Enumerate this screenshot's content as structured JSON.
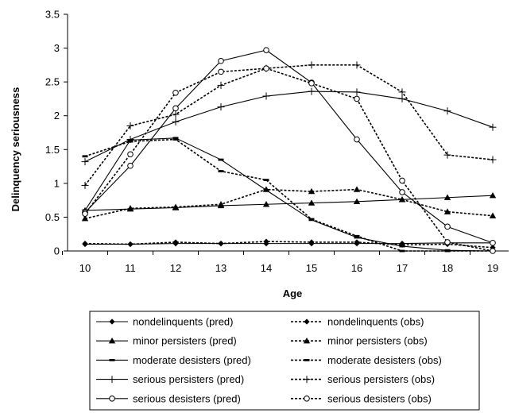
{
  "chart_data": {
    "type": "line",
    "title": "",
    "xlabel": "Age",
    "ylabel": "Delinquency seriousness",
    "x": [
      10,
      11,
      12,
      13,
      14,
      15,
      16,
      17,
      18,
      19
    ],
    "xlim": [
      10,
      19
    ],
    "ylim": [
      0,
      3.5
    ],
    "yticks": [
      "0",
      "0.5",
      "1",
      "1.5",
      "2",
      "2.5",
      "3",
      "3.5"
    ],
    "grid": false,
    "legend_position": "bottom",
    "series": [
      {
        "name": "nondelinquents (pred)",
        "style": "solid",
        "marker": "diamond",
        "values": [
          0.1,
          0.1,
          0.11,
          0.11,
          0.11,
          0.11,
          0.11,
          0.11,
          0.12,
          0.12
        ]
      },
      {
        "name": "nondelinquents (obs)",
        "style": "dotted",
        "marker": "diamond",
        "values": [
          0.11,
          0.1,
          0.13,
          0.11,
          0.14,
          0.13,
          0.13,
          0.09,
          0.1,
          0.05
        ]
      },
      {
        "name": "minor persisters (pred)",
        "style": "solid",
        "marker": "triangle",
        "values": [
          0.6,
          0.62,
          0.64,
          0.67,
          0.69,
          0.71,
          0.73,
          0.76,
          0.79,
          0.82
        ]
      },
      {
        "name": "minor persisters (obs)",
        "style": "dotted",
        "marker": "triangle",
        "values": [
          0.48,
          0.63,
          0.65,
          0.69,
          0.91,
          0.88,
          0.91,
          0.76,
          0.58,
          0.52
        ]
      },
      {
        "name": "moderate desisters (pred)",
        "style": "solid",
        "marker": "dash",
        "values": [
          0.6,
          1.64,
          1.67,
          1.35,
          0.9,
          0.46,
          0.2,
          0.07,
          0.01,
          0.0
        ]
      },
      {
        "name": "moderate desisters (obs)",
        "style": "dotted",
        "marker": "dash",
        "values": [
          1.4,
          1.62,
          1.65,
          1.18,
          1.05,
          0.47,
          0.22,
          0.0,
          0.0,
          0.0
        ]
      },
      {
        "name": "serious persisters (pred)",
        "style": "solid",
        "marker": "plus",
        "values": [
          1.32,
          1.65,
          1.91,
          2.13,
          2.29,
          2.36,
          2.35,
          2.25,
          2.07,
          1.83
        ]
      },
      {
        "name": "serious persisters (obs)",
        "style": "dotted",
        "marker": "plus",
        "values": [
          0.97,
          1.85,
          2.02,
          2.45,
          2.7,
          2.75,
          2.75,
          2.35,
          1.42,
          1.35
        ]
      },
      {
        "name": "serious desisters (pred)",
        "style": "solid",
        "marker": "circle",
        "values": [
          0.57,
          1.26,
          2.11,
          2.81,
          2.97,
          2.49,
          1.65,
          0.87,
          0.36,
          0.12
        ]
      },
      {
        "name": "serious desisters (obs)",
        "style": "dotted",
        "marker": "circle",
        "values": [
          0.55,
          1.43,
          2.34,
          2.65,
          2.7,
          2.48,
          2.25,
          1.04,
          0.13,
          0.0
        ]
      }
    ]
  }
}
